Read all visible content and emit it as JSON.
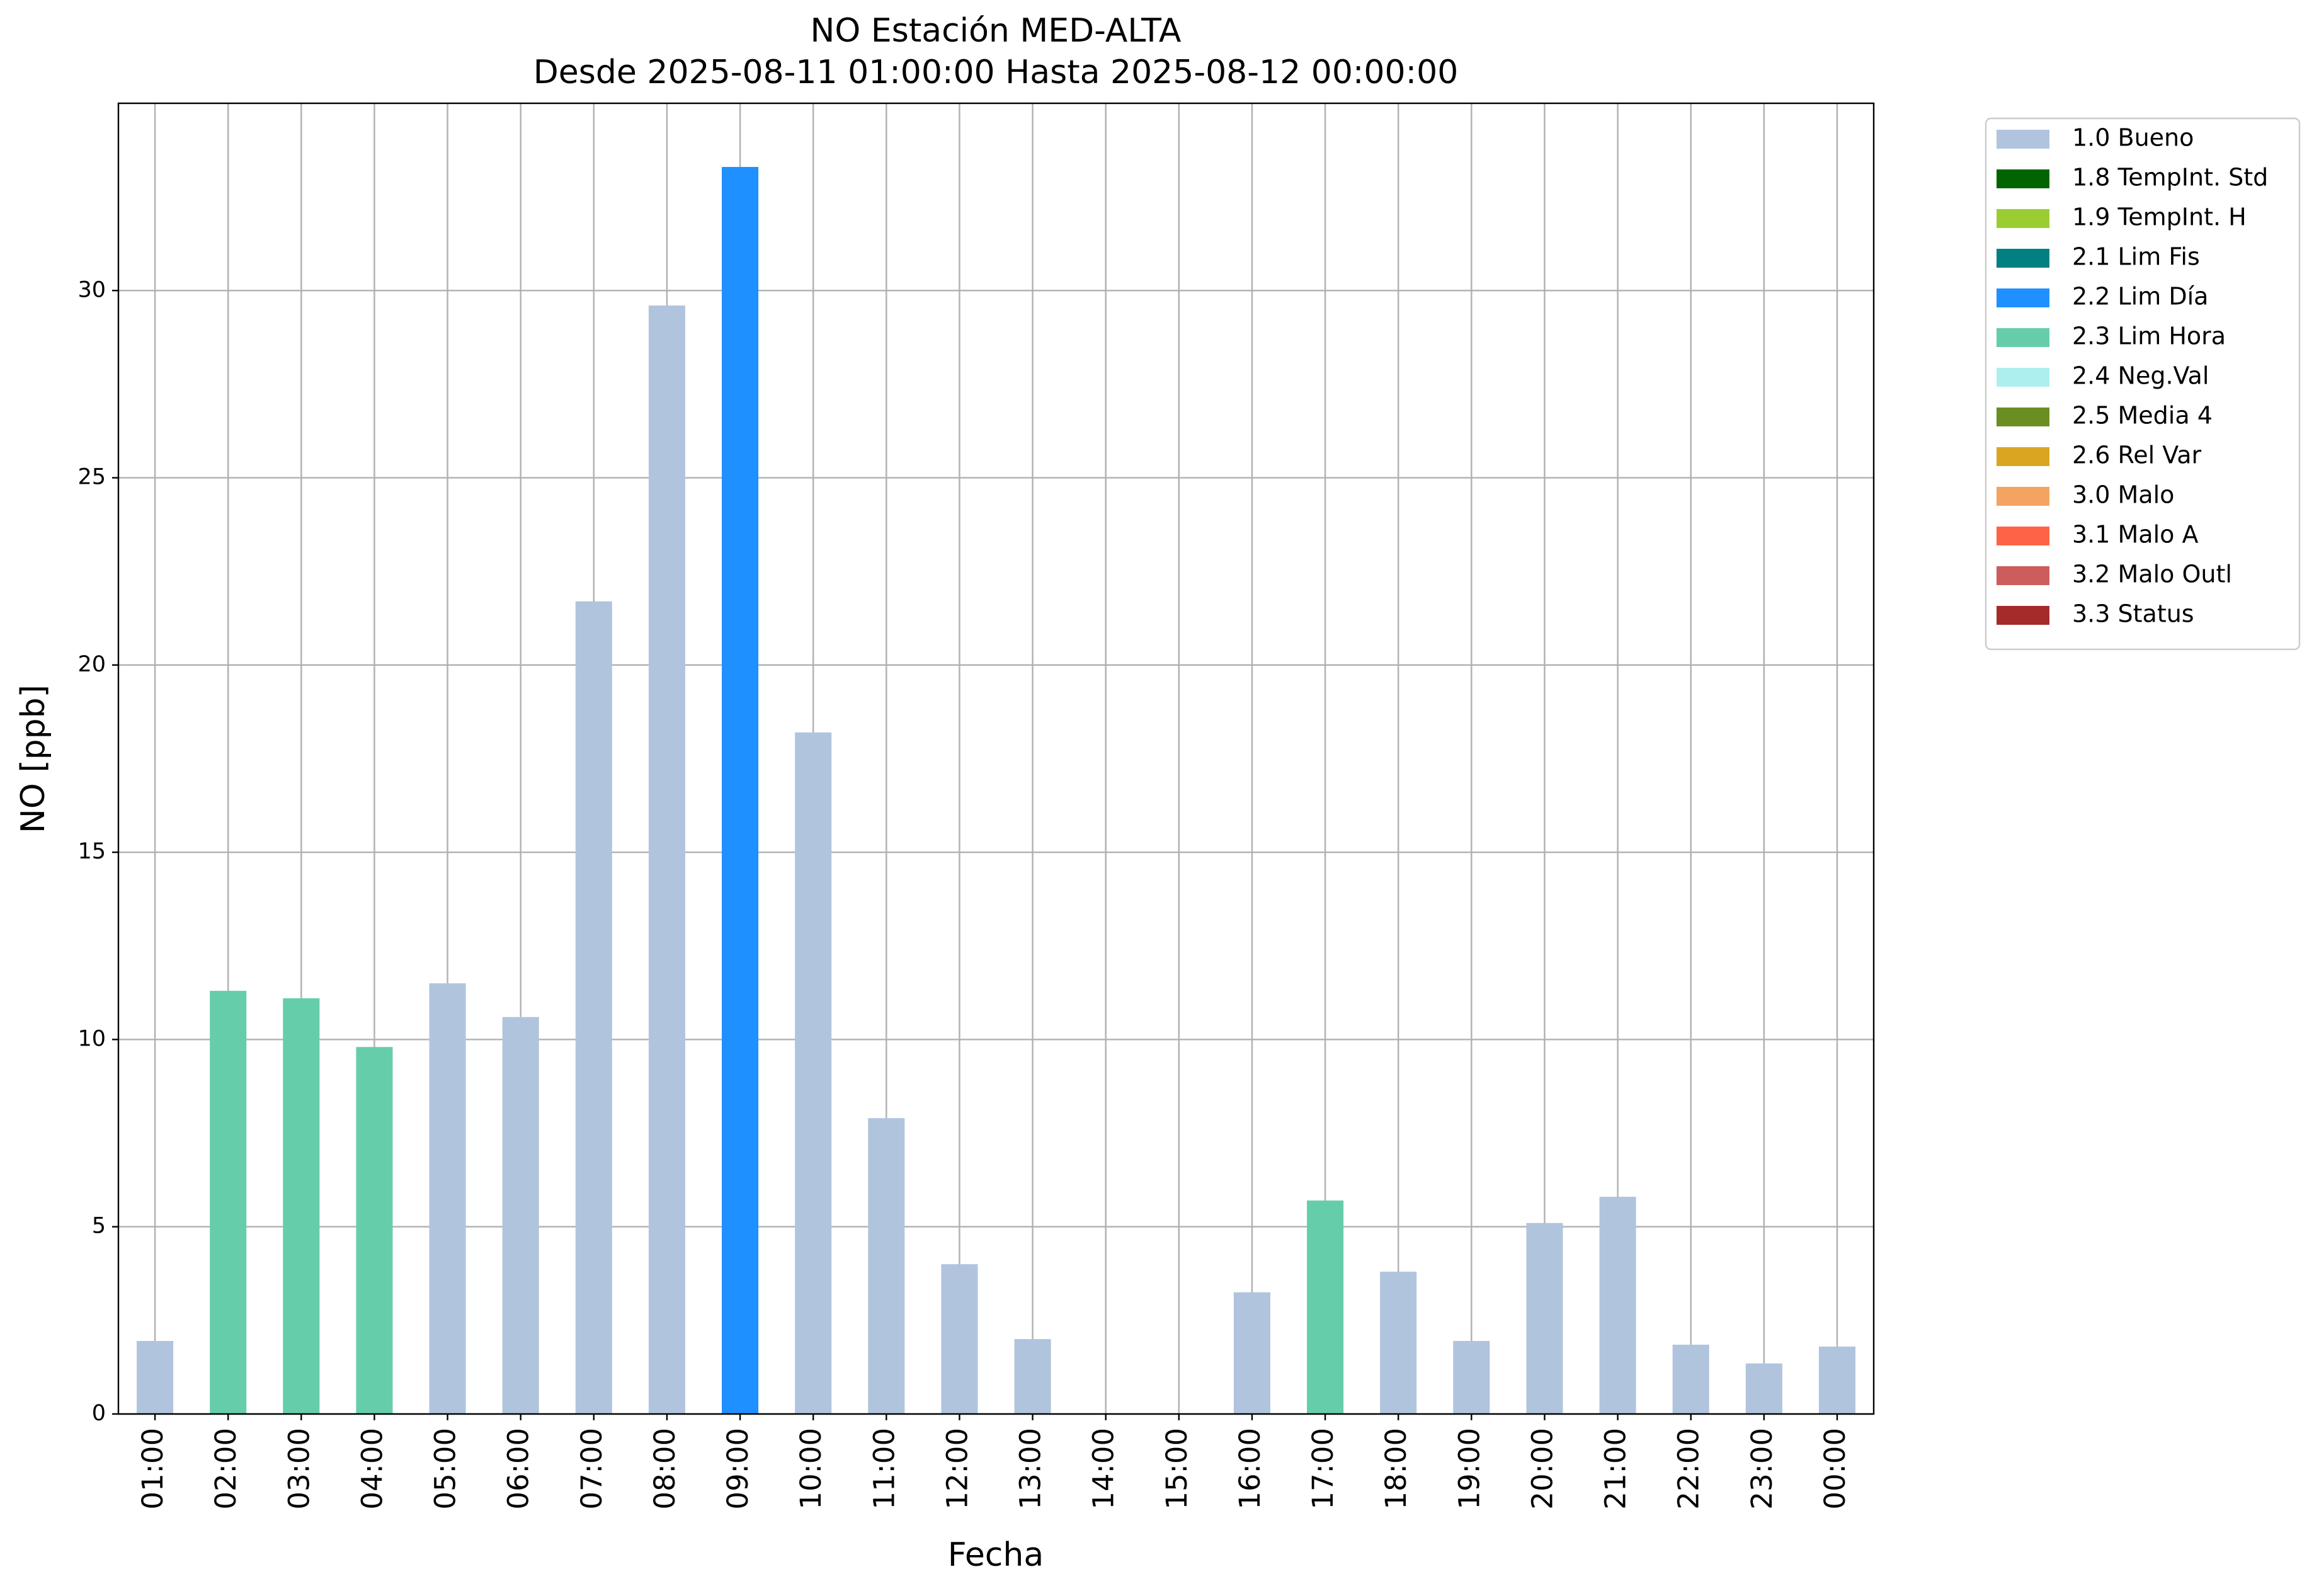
{
  "chart_data": {
    "type": "stacked-bar",
    "title": "NO Estación MED-ALTA",
    "subtitle": "Desde 2025-08-11 01:00:00 Hasta 2025-08-12 00:00:00",
    "x_label": "Fecha",
    "y_label": "NO [ppb]",
    "categories": [
      "01:00",
      "02:00",
      "03:00",
      "04:00",
      "05:00",
      "06:00",
      "07:00",
      "08:00",
      "09:00",
      "10:00",
      "11:00",
      "12:00",
      "13:00",
      "14:00",
      "15:00",
      "16:00",
      "17:00",
      "18:00",
      "19:00",
      "20:00",
      "21:00",
      "22:00",
      "23:00",
      "00:00"
    ],
    "series": [
      {
        "name": "1.0 Bueno",
        "color": "#b0c4de",
        "values": [
          1.95,
          null,
          null,
          null,
          11.5,
          10.6,
          21.7,
          29.6,
          null,
          18.2,
          7.9,
          4.0,
          2.0,
          null,
          null,
          3.25,
          null,
          3.8,
          1.95,
          5.1,
          5.8,
          1.85,
          1.35,
          1.8
        ]
      },
      {
        "name": "1.8 TempInt. Std",
        "color": "#006400",
        "values": [
          null,
          null,
          null,
          null,
          null,
          null,
          null,
          null,
          null,
          null,
          null,
          null,
          null,
          null,
          null,
          null,
          null,
          null,
          null,
          null,
          null,
          null,
          null,
          null
        ]
      },
      {
        "name": "1.9 TempInt. H",
        "color": "#9acd32",
        "values": [
          null,
          null,
          null,
          null,
          null,
          null,
          null,
          null,
          null,
          null,
          null,
          null,
          null,
          null,
          null,
          null,
          null,
          null,
          null,
          null,
          null,
          null,
          null,
          null
        ]
      },
      {
        "name": "2.1 Lim Fis",
        "color": "#008080",
        "values": [
          null,
          null,
          null,
          null,
          null,
          null,
          null,
          null,
          null,
          null,
          null,
          null,
          null,
          null,
          null,
          null,
          null,
          null,
          null,
          null,
          null,
          null,
          null,
          null
        ]
      },
      {
        "name": "2.2 Lim Día",
        "color": "#1e90ff",
        "values": [
          null,
          null,
          null,
          null,
          null,
          null,
          null,
          null,
          33.3,
          null,
          null,
          null,
          null,
          null,
          null,
          null,
          null,
          null,
          null,
          null,
          null,
          null,
          null,
          null
        ]
      },
      {
        "name": "2.3 Lim Hora",
        "color": "#66cdaa",
        "values": [
          null,
          11.3,
          11.1,
          9.8,
          null,
          null,
          null,
          null,
          null,
          null,
          null,
          null,
          null,
          null,
          null,
          null,
          5.7,
          null,
          null,
          null,
          null,
          null,
          null,
          null
        ]
      },
      {
        "name": "2.4 Neg.Val",
        "color": "#afeeee",
        "values": [
          null,
          null,
          null,
          null,
          null,
          null,
          null,
          null,
          null,
          null,
          null,
          null,
          null,
          null,
          null,
          null,
          null,
          null,
          null,
          null,
          null,
          null,
          null,
          null
        ]
      },
      {
        "name": "2.5 Media 4",
        "color": "#6b8e23",
        "values": [
          null,
          null,
          null,
          null,
          null,
          null,
          null,
          null,
          null,
          null,
          null,
          null,
          null,
          null,
          null,
          null,
          null,
          null,
          null,
          null,
          null,
          null,
          null,
          null
        ]
      },
      {
        "name": "2.6 Rel Var",
        "color": "#daa520",
        "values": [
          null,
          null,
          null,
          null,
          null,
          null,
          null,
          null,
          null,
          null,
          null,
          null,
          null,
          null,
          null,
          null,
          null,
          null,
          null,
          null,
          null,
          null,
          null,
          null
        ]
      },
      {
        "name": "3.0 Malo",
        "color": "#f4a460",
        "values": [
          null,
          null,
          null,
          null,
          null,
          null,
          null,
          null,
          null,
          null,
          null,
          null,
          null,
          null,
          null,
          null,
          null,
          null,
          null,
          null,
          null,
          null,
          null,
          null
        ]
      },
      {
        "name": "3.1 Malo A",
        "color": "#ff6347",
        "values": [
          null,
          null,
          null,
          null,
          null,
          null,
          null,
          null,
          null,
          null,
          null,
          null,
          null,
          null,
          null,
          null,
          null,
          null,
          null,
          null,
          null,
          null,
          null,
          null
        ]
      },
      {
        "name": "3.2 Malo Outl",
        "color": "#cd5c5c",
        "values": [
          null,
          null,
          null,
          null,
          null,
          null,
          null,
          null,
          null,
          null,
          null,
          null,
          null,
          null,
          null,
          null,
          null,
          null,
          null,
          null,
          null,
          null,
          null,
          null
        ]
      },
      {
        "name": "3.3 Status",
        "color": "#a52a2a",
        "values": [
          null,
          null,
          null,
          null,
          null,
          null,
          null,
          null,
          null,
          null,
          null,
          null,
          null,
          null,
          null,
          null,
          null,
          null,
          null,
          null,
          null,
          null,
          null,
          null
        ]
      }
    ],
    "ylim": [
      0,
      35
    ],
    "yticks": [
      0,
      5,
      10,
      15,
      20,
      25,
      30
    ],
    "grid": true,
    "legend": "outside-right"
  }
}
